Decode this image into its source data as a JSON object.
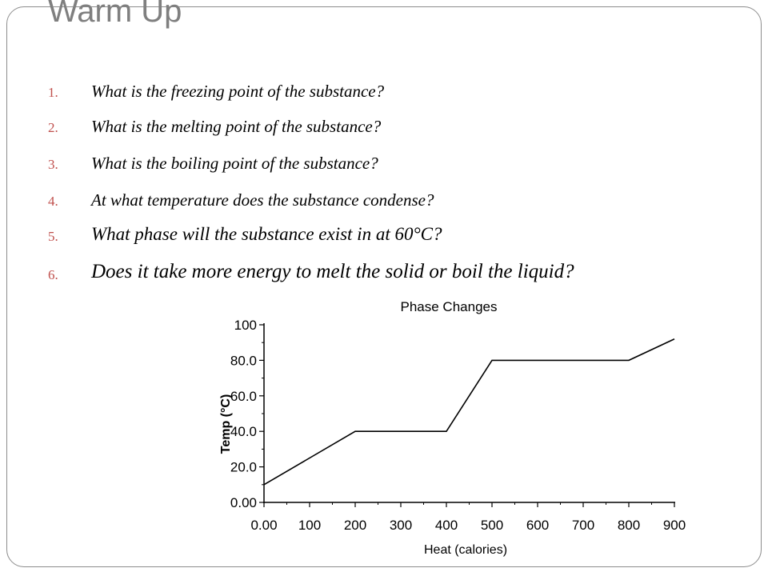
{
  "slide": {
    "title": "Warm Up",
    "accent_color": "#c0504d",
    "title_color": "#7f7f7f",
    "questions": [
      {
        "num": "1.",
        "text": "What is the freezing point of the substance?"
      },
      {
        "num": "2.",
        "text": "What is the melting point of the substance?"
      },
      {
        "num": "3.",
        "text": "What is the boiling point of the substance?"
      },
      {
        "num": "4.",
        "text": "At what temperature does the substance condense?"
      },
      {
        "num": "5.",
        "text": "What phase will the substance exist in at 60°C?"
      },
      {
        "num": "6.",
        "text": "Does it take more energy to melt the solid or boil the liquid?"
      }
    ]
  },
  "chart_data": {
    "type": "line",
    "title": "Phase Changes",
    "xlabel": "Heat (calories)",
    "ylabel": "Temp  (°C)",
    "xlim": [
      0,
      900
    ],
    "ylim": [
      0,
      100
    ],
    "x_ticks": [
      "0.00",
      "100",
      "200",
      "300",
      "400",
      "500",
      "600",
      "700",
      "800",
      "900"
    ],
    "y_ticks": [
      "0.00",
      "20.0",
      "40.0",
      "60.0",
      "80.0",
      "100"
    ],
    "grid": false,
    "series": [
      {
        "x": [
          0,
          200,
          400,
          500,
          800,
          900
        ],
        "y": [
          10,
          40,
          40,
          80,
          80,
          92
        ]
      }
    ]
  }
}
